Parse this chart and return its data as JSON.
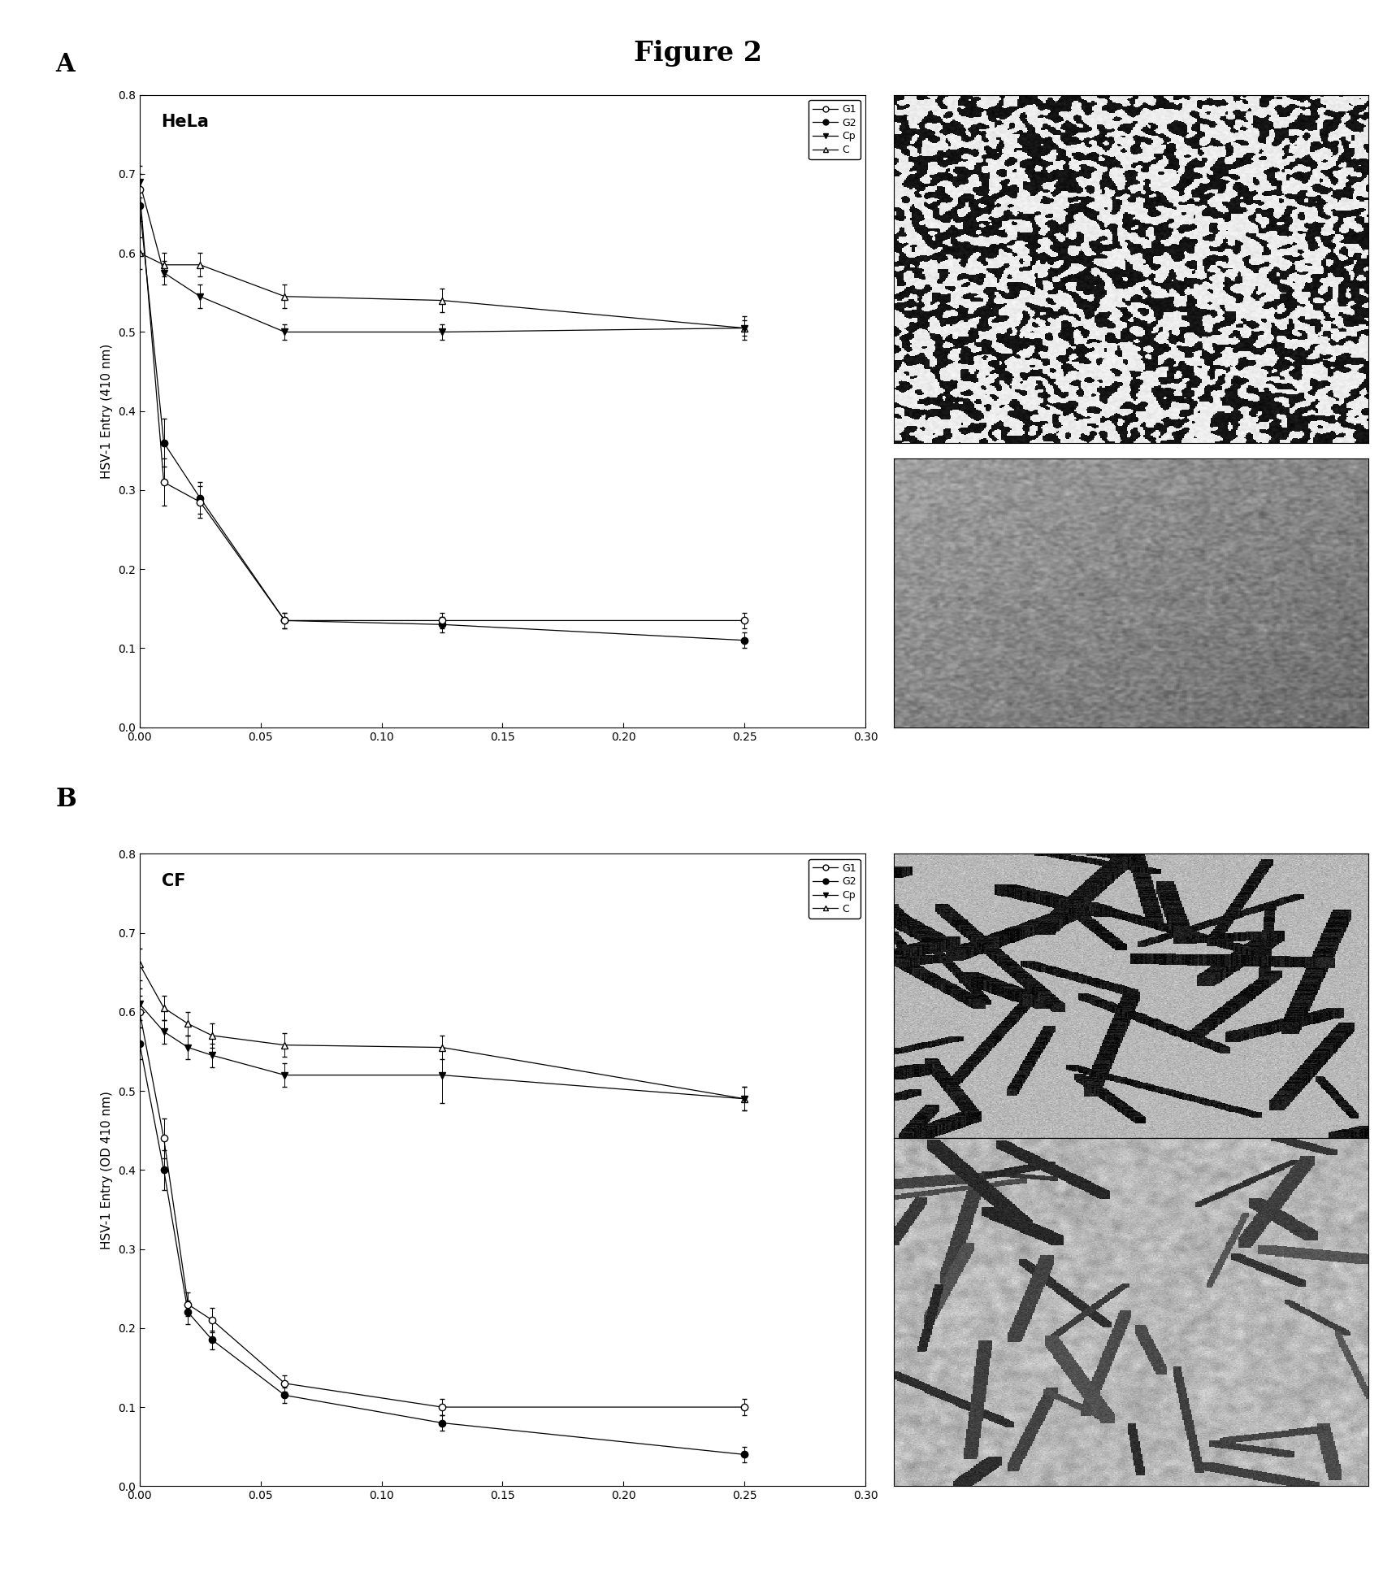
{
  "title": "Figure 2",
  "cell_label_A": "HeLa",
  "cell_label_B": "CF",
  "ylabel_A": "HSV-1 Entry (410 nm)",
  "ylabel_B": "HSV-1 Entry (OD 410 nm)",
  "xlim": [
    0.0,
    0.3
  ],
  "ylim": [
    0.0,
    0.8
  ],
  "xticks": [
    0.0,
    0.05,
    0.1,
    0.15,
    0.2,
    0.25,
    0.3
  ],
  "yticks": [
    0.0,
    0.1,
    0.2,
    0.3,
    0.4,
    0.5,
    0.6,
    0.7,
    0.8
  ],
  "panel_A": {
    "G1": {
      "x": [
        0.0,
        0.01,
        0.025,
        0.06,
        0.125,
        0.25
      ],
      "y": [
        0.68,
        0.31,
        0.285,
        0.135,
        0.135,
        0.135
      ],
      "yerr": [
        0.02,
        0.03,
        0.02,
        0.01,
        0.01,
        0.01
      ]
    },
    "G2": {
      "x": [
        0.0,
        0.01,
        0.025,
        0.06,
        0.125,
        0.25
      ],
      "y": [
        0.66,
        0.36,
        0.29,
        0.135,
        0.13,
        0.11
      ],
      "yerr": [
        0.02,
        0.03,
        0.02,
        0.01,
        0.01,
        0.01
      ]
    },
    "Cp": {
      "x": [
        0.0,
        0.01,
        0.025,
        0.06,
        0.125,
        0.25
      ],
      "y": [
        0.69,
        0.575,
        0.545,
        0.5,
        0.5,
        0.505
      ],
      "yerr": [
        0.02,
        0.015,
        0.015,
        0.01,
        0.01,
        0.01
      ]
    },
    "C": {
      "x": [
        0.0,
        0.01,
        0.025,
        0.06,
        0.125,
        0.25
      ],
      "y": [
        0.6,
        0.585,
        0.585,
        0.545,
        0.54,
        0.505
      ],
      "yerr": [
        0.02,
        0.015,
        0.015,
        0.015,
        0.015,
        0.015
      ]
    }
  },
  "panel_B": {
    "G1": {
      "x": [
        0.0,
        0.01,
        0.02,
        0.03,
        0.06,
        0.125,
        0.25
      ],
      "y": [
        0.6,
        0.44,
        0.23,
        0.21,
        0.13,
        0.1,
        0.1
      ],
      "yerr": [
        0.02,
        0.025,
        0.015,
        0.015,
        0.01,
        0.01,
        0.01
      ]
    },
    "G2": {
      "x": [
        0.0,
        0.01,
        0.02,
        0.03,
        0.06,
        0.125,
        0.25
      ],
      "y": [
        0.56,
        0.4,
        0.22,
        0.185,
        0.115,
        0.08,
        0.04
      ],
      "yerr": [
        0.02,
        0.025,
        0.015,
        0.012,
        0.01,
        0.01,
        0.01
      ]
    },
    "Cp": {
      "x": [
        0.0,
        0.01,
        0.02,
        0.03,
        0.06,
        0.125,
        0.25
      ],
      "y": [
        0.61,
        0.575,
        0.555,
        0.545,
        0.52,
        0.52,
        0.49
      ],
      "yerr": [
        0.02,
        0.015,
        0.015,
        0.015,
        0.015,
        0.035,
        0.015
      ]
    },
    "C": {
      "x": [
        0.0,
        0.01,
        0.02,
        0.03,
        0.06,
        0.125,
        0.25
      ],
      "y": [
        0.66,
        0.605,
        0.585,
        0.57,
        0.558,
        0.555,
        0.49
      ],
      "yerr": [
        0.02,
        0.015,
        0.015,
        0.015,
        0.015,
        0.015,
        0.015
      ]
    }
  },
  "background_color": "#ffffff"
}
